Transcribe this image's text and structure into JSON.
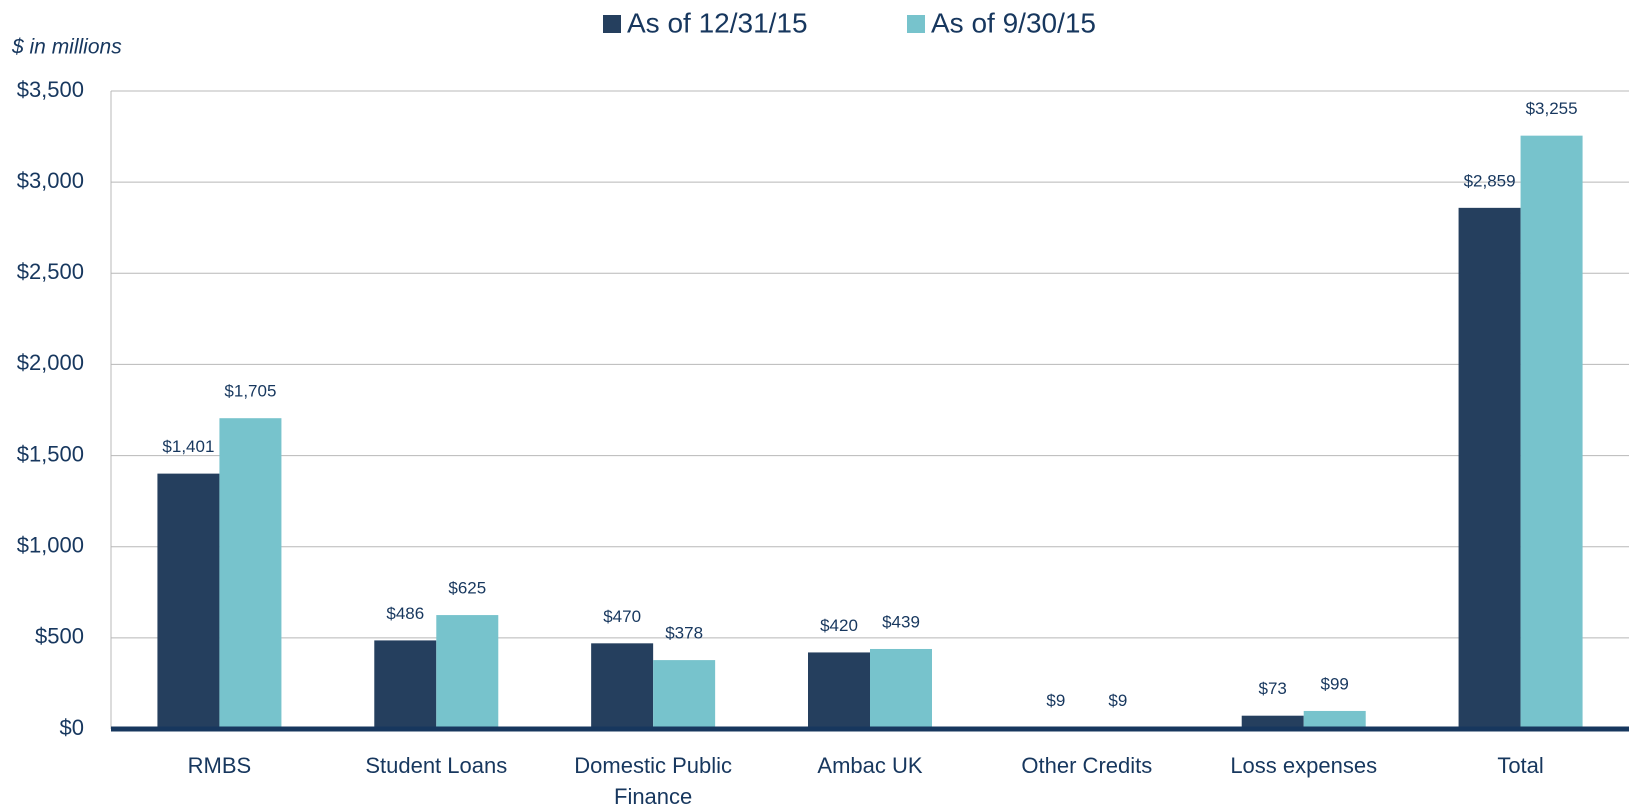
{
  "chart_data": {
    "type": "bar",
    "subtitle": "$ in millions",
    "categories": [
      "RMBS",
      "Student Loans",
      "Domestic Public Finance",
      "Ambac UK",
      "Other Credits",
      "Loss expenses",
      "Total"
    ],
    "series": [
      {
        "name": "As of 12/31/15",
        "color": "#253f5e",
        "values": [
          1401,
          486,
          470,
          420,
          9,
          73,
          2859
        ],
        "value_labels": [
          "$1,401",
          "$486",
          "$470",
          "$420",
          "$9",
          "$73",
          "$2,859"
        ]
      },
      {
        "name": "As of 9/30/15",
        "color": "#77c3cc",
        "values": [
          1705,
          625,
          378,
          439,
          9,
          99,
          3255
        ],
        "value_labels": [
          "$1,705",
          "$625",
          "$378",
          "$439",
          "$9",
          "$99",
          "$3,255"
        ]
      }
    ],
    "ylim": [
      0,
      3500
    ],
    "yticks": [
      {
        "value": 0,
        "label": "$0"
      },
      {
        "value": 500,
        "label": "$500"
      },
      {
        "value": 1000,
        "label": "$1,000"
      },
      {
        "value": 1500,
        "label": "$1,500"
      },
      {
        "value": 2000,
        "label": "$2,000"
      },
      {
        "value": 2500,
        "label": "$2,500"
      },
      {
        "value": 3000,
        "label": "$3,000"
      },
      {
        "value": 3500,
        "label": "$3,500"
      }
    ],
    "grid": true,
    "legend": "top"
  }
}
